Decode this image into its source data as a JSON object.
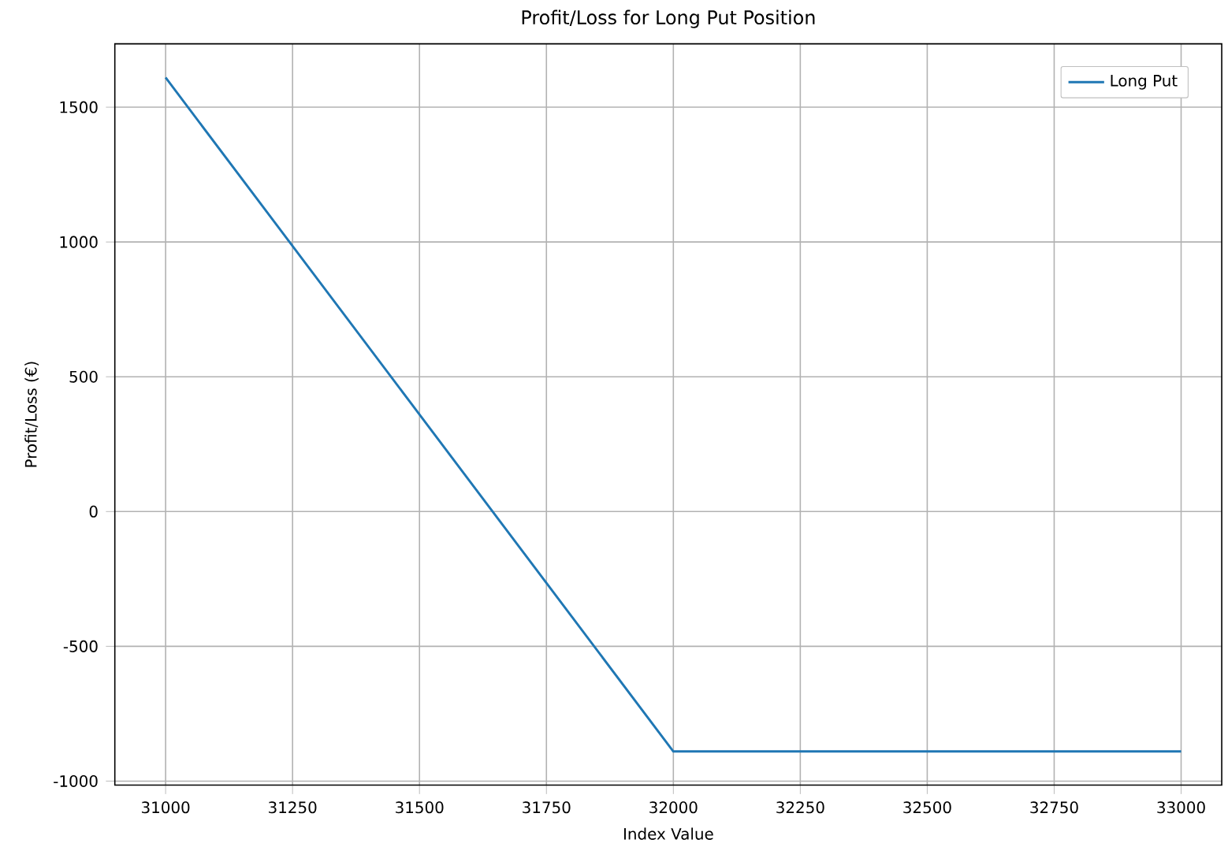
{
  "chart_data": {
    "type": "line",
    "title": "Profit/Loss for Long Put Position",
    "xlabel": "Index Value",
    "ylabel": "Profit/Loss (€)",
    "x": [
      31000,
      32000,
      33000
    ],
    "series": [
      {
        "name": "Long Put",
        "color": "#1f77b4",
        "values": [
          1610,
          -890,
          -890
        ]
      }
    ],
    "xlim": [
      30900,
      33080
    ],
    "ylim": [
      -1015,
      1735
    ],
    "xticks": [
      31000,
      31250,
      31500,
      31750,
      32000,
      32250,
      32500,
      32750,
      33000
    ],
    "yticks": [
      -1000,
      -500,
      0,
      500,
      1000,
      1500
    ],
    "grid": true,
    "legend": "top right",
    "marker": "none",
    "line_style": "solid"
  }
}
